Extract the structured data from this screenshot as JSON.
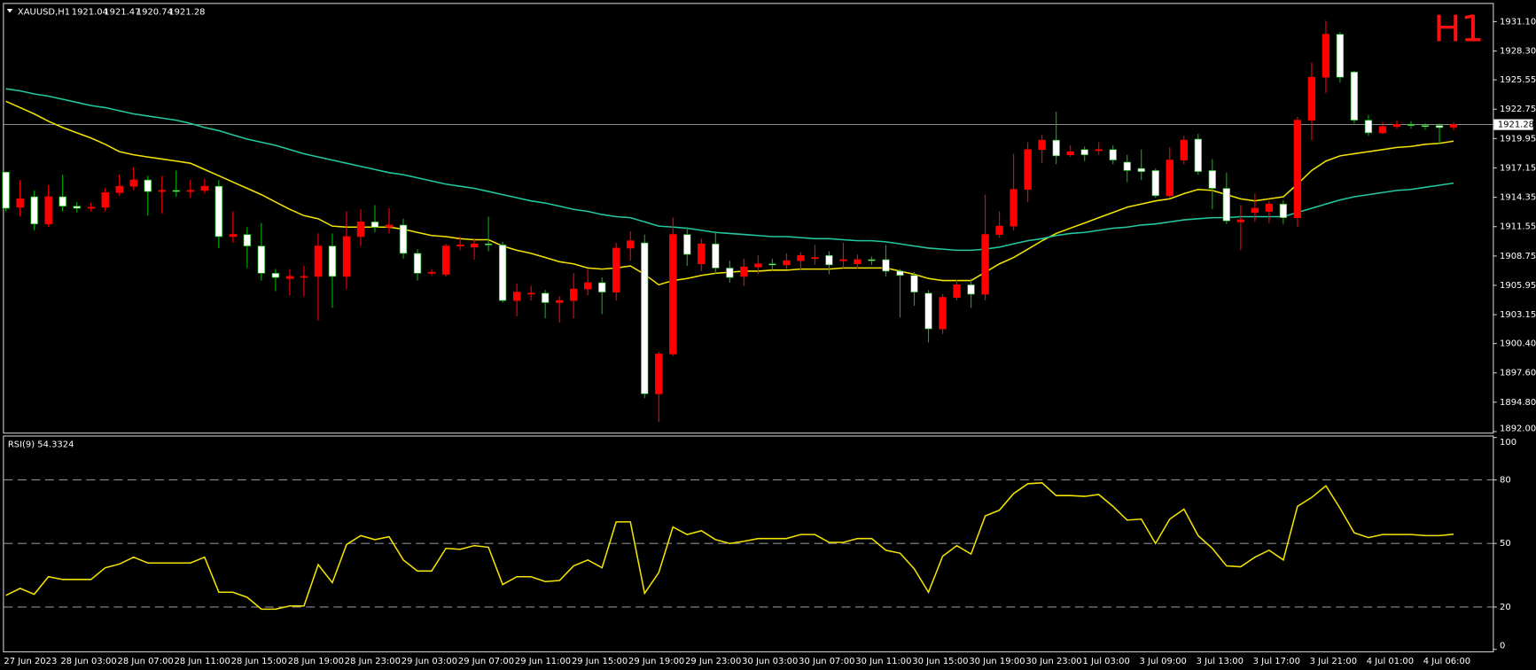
{
  "chart_data": [
    {
      "type": "candlestick",
      "symbol": "XAUUSD,H1",
      "ohlc_header": [
        1921.04,
        1921.47,
        1920.74,
        1921.28
      ],
      "timeframe_label": "H1",
      "last_price": 1921.28,
      "up_color": "#ff0000",
      "down_color": "#ffffff",
      "wick_color": "#00b400",
      "categories": [
        "27 Jun 2023",
        null,
        null,
        null,
        "28 Jun 03:00",
        null,
        null,
        null,
        "28 Jun 07:00",
        null,
        null,
        null,
        "28 Jun 11:00",
        null,
        null,
        null,
        "28 Jun 15:00",
        null,
        null,
        null,
        "28 Jun 19:00",
        null,
        null,
        null,
        "28 Jun 23:00",
        null,
        null,
        null,
        "29 Jun 03:00",
        null,
        null,
        null,
        "29 Jun 07:00",
        null,
        null,
        null,
        "29 Jun 11:00",
        null,
        null,
        null,
        "29 Jun 15:00",
        null,
        null,
        null,
        "29 Jun 19:00",
        null,
        null,
        null,
        "29 Jun 23:00",
        null,
        null,
        null,
        "30 Jun 03:00",
        null,
        null,
        null,
        "30 Jun 07:00",
        null,
        null,
        null,
        "30 Jun 11:00",
        null,
        null,
        null,
        "30 Jun 15:00",
        null,
        null,
        null,
        "30 Jun 19:00",
        null,
        null,
        null,
        "30 Jun 23:00",
        null,
        null,
        null,
        "1 Jul 03:00",
        null,
        null,
        null,
        "3 Jul 09:00",
        null,
        null,
        null,
        "3 Jul 13:00",
        null,
        null,
        null,
        "3 Jul 17:00",
        null,
        null,
        null,
        "3 Jul 21:00",
        null,
        null,
        null,
        "4 Jul 01:00",
        null,
        null,
        null,
        "4 Jul 06:00",
        null,
        null
      ],
      "open": [
        1916.75,
        1913.4,
        1914.4,
        1911.8,
        1914.4,
        1913.5,
        1913.3,
        1913.4,
        1914.8,
        1915.4,
        1916.0,
        1914.9,
        1915.0,
        1914.9,
        1915.0,
        1915.4,
        1910.6,
        1910.8,
        1909.7,
        1907.1,
        1906.6,
        1906.8,
        1906.8,
        1909.7,
        1906.8,
        1910.6,
        1912.0,
        1911.5,
        1911.7,
        1909.0,
        1907.1,
        1907.0,
        1909.7,
        1909.6,
        1909.9,
        1909.8,
        1904.5,
        1905.2,
        1905.2,
        1904.3,
        1904.5,
        1905.6,
        1906.2,
        1905.3,
        1909.5,
        1910.0,
        1895.6,
        1899.4,
        1910.8,
        1908.0,
        1909.9,
        1907.6,
        1906.8,
        1907.7,
        1908.0,
        1907.9,
        1908.3,
        1908.6,
        1908.8,
        1908.3,
        1908.0,
        1908.4,
        1908.4,
        1907.3,
        1906.9,
        1905.2,
        1901.8,
        1904.8,
        1906.0,
        1905.1,
        1910.8,
        1911.6,
        1915.1,
        1918.9,
        1919.8,
        1918.4,
        1918.9,
        1918.8,
        1918.9,
        1917.7,
        1917.1,
        1916.9,
        1914.5,
        1917.9,
        1919.9,
        1916.9,
        1915.2,
        1912.0,
        1912.9,
        1913.0,
        1913.7,
        1912.4,
        1921.7,
        1925.8,
        1929.9,
        1926.3,
        1921.7,
        1920.5,
        1921.1,
        1921.3,
        1921.2,
        1921.2,
        1921.04
      ],
      "high": [
        1916.8,
        1916.0,
        1915.0,
        1915.5,
        1916.5,
        1913.9,
        1913.8,
        1915.2,
        1916.5,
        1917.2,
        1916.4,
        1916.4,
        1916.9,
        1916.0,
        1916.1,
        1916.0,
        1913.0,
        1911.5,
        1911.9,
        1907.5,
        1907.5,
        1907.8,
        1910.9,
        1910.9,
        1913.0,
        1913.2,
        1913.6,
        1913.3,
        1912.3,
        1909.4,
        1907.5,
        1909.9,
        1910.6,
        1910.4,
        1912.5,
        1910.1,
        1906.1,
        1905.9,
        1905.5,
        1904.9,
        1907.1,
        1907.5,
        1906.7,
        1910.0,
        1911.1,
        1910.8,
        1899.6,
        1912.4,
        1911.5,
        1910.4,
        1911.1,
        1908.3,
        1908.5,
        1908.8,
        1908.5,
        1909.0,
        1909.1,
        1909.8,
        1909.2,
        1910.0,
        1908.9,
        1908.7,
        1909.8,
        1907.5,
        1907.2,
        1905.5,
        1905.1,
        1906.5,
        1906.6,
        1914.6,
        1913.0,
        1918.5,
        1919.6,
        1920.3,
        1922.5,
        1919.3,
        1919.2,
        1919.6,
        1919.3,
        1918.4,
        1918.9,
        1917.1,
        1919.1,
        1920.2,
        1920.4,
        1918.0,
        1916.7,
        1913.6,
        1914.7,
        1914.0,
        1914.1,
        1922.0,
        1927.2,
        1931.2,
        1930.1,
        1926.4,
        1922.2,
        1921.5,
        1921.7,
        1921.6,
        1921.4,
        1921.4,
        1921.47
      ],
      "low": [
        1913.0,
        1912.5,
        1911.2,
        1911.5,
        1913.0,
        1912.9,
        1913.0,
        1913.0,
        1914.5,
        1915.0,
        1912.6,
        1912.8,
        1914.4,
        1914.3,
        1914.7,
        1909.5,
        1910.0,
        1907.6,
        1906.4,
        1905.4,
        1905.0,
        1904.9,
        1902.6,
        1903.8,
        1905.6,
        1909.7,
        1911.0,
        1910.9,
        1908.5,
        1906.4,
        1906.9,
        1906.8,
        1909.3,
        1908.4,
        1909.2,
        1904.3,
        1903.0,
        1904.5,
        1902.8,
        1902.4,
        1902.8,
        1905.0,
        1903.2,
        1904.5,
        1908.3,
        1895.2,
        1892.9,
        1899.2,
        1907.8,
        1907.3,
        1907.0,
        1906.2,
        1905.9,
        1907.0,
        1907.4,
        1907.5,
        1907.4,
        1907.9,
        1907.0,
        1907.6,
        1907.5,
        1907.9,
        1906.8,
        1902.9,
        1904.0,
        1900.5,
        1901.3,
        1904.5,
        1903.8,
        1904.5,
        1910.5,
        1911.2,
        1913.9,
        1917.6,
        1917.5,
        1918.2,
        1917.8,
        1918.4,
        1917.5,
        1915.8,
        1916.0,
        1914.3,
        1914.3,
        1917.5,
        1916.5,
        1913.2,
        1911.8,
        1909.3,
        1912.0,
        1911.9,
        1911.8,
        1911.5,
        1919.8,
        1924.3,
        1925.3,
        1921.4,
        1920.2,
        1920.4,
        1920.9,
        1920.9,
        1920.8,
        1919.5,
        1920.74
      ],
      "close": [
        1913.3,
        1914.2,
        1911.8,
        1914.4,
        1913.5,
        1913.3,
        1913.4,
        1914.8,
        1915.4,
        1916.0,
        1914.9,
        1915.0,
        1914.9,
        1915.0,
        1915.4,
        1910.6,
        1910.8,
        1909.7,
        1907.1,
        1906.7,
        1906.8,
        1906.8,
        1909.7,
        1906.8,
        1910.6,
        1912.0,
        1911.5,
        1911.7,
        1909.0,
        1907.1,
        1907.2,
        1909.7,
        1909.8,
        1909.9,
        1909.8,
        1904.5,
        1905.3,
        1905.2,
        1904.3,
        1904.5,
        1905.6,
        1906.2,
        1905.3,
        1909.5,
        1910.2,
        1895.6,
        1899.4,
        1910.8,
        1908.9,
        1909.9,
        1907.6,
        1906.7,
        1907.7,
        1908.0,
        1907.9,
        1908.3,
        1908.8,
        1908.6,
        1907.9,
        1908.4,
        1908.4,
        1908.3,
        1907.3,
        1906.9,
        1905.3,
        1901.8,
        1904.8,
        1906.0,
        1905.1,
        1910.8,
        1911.6,
        1915.1,
        1918.9,
        1919.8,
        1918.3,
        1918.7,
        1918.4,
        1918.9,
        1917.9,
        1916.9,
        1916.8,
        1914.5,
        1917.9,
        1919.8,
        1916.8,
        1915.2,
        1912.1,
        1912.2,
        1913.3,
        1913.7,
        1912.4,
        1921.7,
        1925.8,
        1929.9,
        1925.8,
        1921.7,
        1920.5,
        1921.1,
        1921.3,
        1921.2,
        1921.1,
        1921.0,
        1921.28
      ],
      "series": [
        {
          "color": "#f2e200",
          "values": [
            1923.5,
            1922.9,
            1922.3,
            1921.6,
            1921.0,
            1920.5,
            1920.0,
            1919.4,
            1918.7,
            1918.4,
            1918.2,
            1918.0,
            1917.8,
            1917.6,
            1917.0,
            1916.4,
            1915.8,
            1915.2,
            1914.6,
            1913.9,
            1913.2,
            1912.6,
            1912.3,
            1911.6,
            1911.5,
            1911.5,
            1911.5,
            1911.5,
            1911.3,
            1911.0,
            1910.7,
            1910.6,
            1910.4,
            1910.3,
            1910.3,
            1909.7,
            1909.3,
            1909.0,
            1908.6,
            1908.2,
            1908.0,
            1907.6,
            1907.5,
            1907.6,
            1907.8,
            1907.0,
            1906.0,
            1906.4,
            1906.6,
            1906.9,
            1907.1,
            1907.2,
            1907.3,
            1907.3,
            1907.4,
            1907.4,
            1907.5,
            1907.5,
            1907.5,
            1907.6,
            1907.6,
            1907.6,
            1907.6,
            1907.3,
            1907.0,
            1906.6,
            1906.4,
            1906.4,
            1906.4,
            1907.2,
            1908.0,
            1908.6,
            1909.4,
            1910.2,
            1910.9,
            1911.4,
            1911.9,
            1912.4,
            1912.9,
            1913.4,
            1913.7,
            1914.0,
            1914.2,
            1914.7,
            1915.1,
            1915.0,
            1914.6,
            1914.2,
            1914.0,
            1914.2,
            1914.4,
            1915.6,
            1916.9,
            1917.8,
            1918.3,
            1918.5,
            1918.7,
            1918.9,
            1919.1,
            1919.2,
            1919.4,
            1919.5,
            1919.7
          ]
        },
        {
          "color": "#22c8a0",
          "values": [
            1924.7,
            1924.5,
            1924.2,
            1924.0,
            1923.7,
            1923.4,
            1923.1,
            1922.9,
            1922.6,
            1922.3,
            1922.1,
            1921.9,
            1921.7,
            1921.4,
            1921.0,
            1920.7,
            1920.3,
            1919.9,
            1919.6,
            1919.3,
            1918.9,
            1918.5,
            1918.2,
            1917.9,
            1917.6,
            1917.3,
            1917.0,
            1916.7,
            1916.5,
            1916.2,
            1915.9,
            1915.6,
            1915.4,
            1915.2,
            1914.9,
            1914.6,
            1914.3,
            1914.0,
            1913.8,
            1913.5,
            1913.2,
            1913.0,
            1912.7,
            1912.5,
            1912.4,
            1912.0,
            1911.6,
            1911.5,
            1911.4,
            1911.2,
            1911.0,
            1910.9,
            1910.8,
            1910.7,
            1910.6,
            1910.6,
            1910.5,
            1910.4,
            1910.4,
            1910.3,
            1910.2,
            1910.2,
            1910.1,
            1909.9,
            1909.7,
            1909.5,
            1909.4,
            1909.3,
            1909.3,
            1909.4,
            1909.6,
            1909.9,
            1910.2,
            1910.4,
            1910.7,
            1910.9,
            1911.0,
            1911.2,
            1911.4,
            1911.5,
            1911.7,
            1911.8,
            1912.0,
            1912.2,
            1912.3,
            1912.4,
            1912.4,
            1912.5,
            1912.5,
            1912.5,
            1912.5,
            1912.9,
            1913.3,
            1913.7,
            1914.1,
            1914.4,
            1914.6,
            1914.8,
            1915.0,
            1915.1,
            1915.3,
            1915.5,
            1915.7
          ]
        }
      ],
      "ylim": [
        1891.9,
        1932.7
      ],
      "yticks": [
        {
          "value": 1931.1,
          "label": "1931.10"
        },
        {
          "value": 1928.3,
          "label": "1928.30"
        },
        1925.55,
        1922.75,
        1919.95,
        1917.15,
        1914.35,
        1911.55,
        1908.75,
        1905.95,
        1903.15,
        {
          "value": 1900.4,
          "label": "1900.40"
        },
        {
          "value": 1897.6,
          "label": "1897.60"
        },
        {
          "value": 1894.8,
          "label": "1894.80"
        },
        {
          "value": 1892,
          "label": "1892.00"
        }
      ]
    },
    {
      "type": "line",
      "title": "RSI(9) 54.3324",
      "series": [
        {
          "color": "#f2e200",
          "values": [
            25.5,
            28.8,
            26,
            34.3,
            33,
            33,
            33,
            38.5,
            40.3,
            43.5,
            40.8,
            40.8,
            40.8,
            40.8,
            43.5,
            27,
            27,
            24.6,
            19,
            19,
            20.5,
            20.5,
            40,
            31.5,
            49.5,
            53.7,
            51.8,
            53.2,
            42.2,
            37,
            37,
            47.7,
            47.2,
            49,
            48.2,
            30.6,
            34.3,
            34.3,
            32,
            32.5,
            39.4,
            42.2,
            38.5,
            60.2,
            60.2,
            26.5,
            36.2,
            57.8,
            54.2,
            56,
            51.8,
            50,
            51,
            52.3,
            52.3,
            52.3,
            54.2,
            54.2,
            50.5,
            50.5,
            52.3,
            52.3,
            46.8,
            45.4,
            38,
            27,
            44,
            49,
            45,
            63,
            65.7,
            73.5,
            78.2,
            78.6,
            72.6,
            72.6,
            72.2,
            73.1,
            67.5,
            61,
            61.5,
            50,
            61.5,
            66.2,
            53.7,
            47.7,
            39.4,
            39,
            43.5,
            46.8,
            42.2,
            67.5,
            71.7,
            77.2,
            66.6,
            55,
            52.8,
            54.2,
            54.2,
            54.2,
            53.7,
            53.7,
            54.3324
          ]
        }
      ],
      "ylim": [
        0,
        100
      ],
      "yticks": [
        100,
        80,
        50,
        20,
        0
      ],
      "levels": [
        80,
        50,
        20
      ]
    }
  ]
}
